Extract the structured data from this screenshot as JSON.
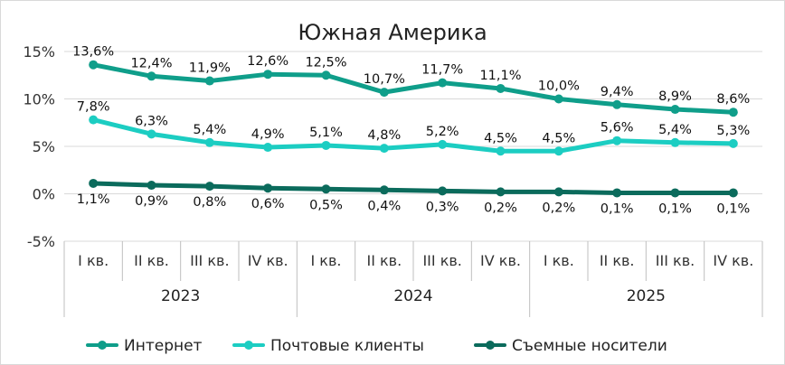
{
  "chart_data": {
    "type": "line",
    "title": "Южная Америка",
    "quarters": [
      "I кв.",
      "II кв.",
      "III кв.",
      "IV кв.",
      "I кв.",
      "II кв.",
      "III кв.",
      "IV кв.",
      "I кв.",
      "II кв.",
      "III кв.",
      "IV кв."
    ],
    "years": [
      "2023",
      "2024",
      "2025"
    ],
    "ylim": [
      -5,
      15
    ],
    "yticks": [
      -5,
      0,
      5,
      10,
      15
    ],
    "ytick_labels": [
      "-5%",
      "0%",
      "5%",
      "10%",
      "15%"
    ],
    "grid": true,
    "legend_position": "bottom",
    "series": [
      {
        "name": "Интернет",
        "color": "#0f9e8a",
        "values": [
          13.6,
          12.4,
          11.9,
          12.6,
          12.5,
          10.7,
          11.7,
          11.1,
          10.0,
          9.4,
          8.9,
          8.6
        ],
        "labels": [
          "13,6%",
          "12,4%",
          "11,9%",
          "12,6%",
          "12,5%",
          "10,7%",
          "11,7%",
          "11,1%",
          "10,0%",
          "9,4%",
          "8,9%",
          "8,6%"
        ]
      },
      {
        "name": "Почтовые клиенты",
        "color": "#1ccdc2",
        "values": [
          7.8,
          6.3,
          5.4,
          4.9,
          5.1,
          4.8,
          5.2,
          4.5,
          4.5,
          5.6,
          5.4,
          5.3
        ],
        "labels": [
          "7,8%",
          "6,3%",
          "5,4%",
          "4,9%",
          "5,1%",
          "4,8%",
          "5,2%",
          "4,5%",
          "4,5%",
          "5,6%",
          "5,4%",
          "5,3%"
        ]
      },
      {
        "name": "Съемные носители",
        "color": "#0b6b5c",
        "values": [
          1.1,
          0.9,
          0.8,
          0.6,
          0.5,
          0.4,
          0.3,
          0.2,
          0.2,
          0.1,
          0.1,
          0.1
        ],
        "labels": [
          "1,1%",
          "0,9%",
          "0,8%",
          "0,6%",
          "0,5%",
          "0,4%",
          "0,3%",
          "0,2%",
          "0,2%",
          "0,1%",
          "0,1%",
          "0,1%"
        ]
      }
    ]
  }
}
